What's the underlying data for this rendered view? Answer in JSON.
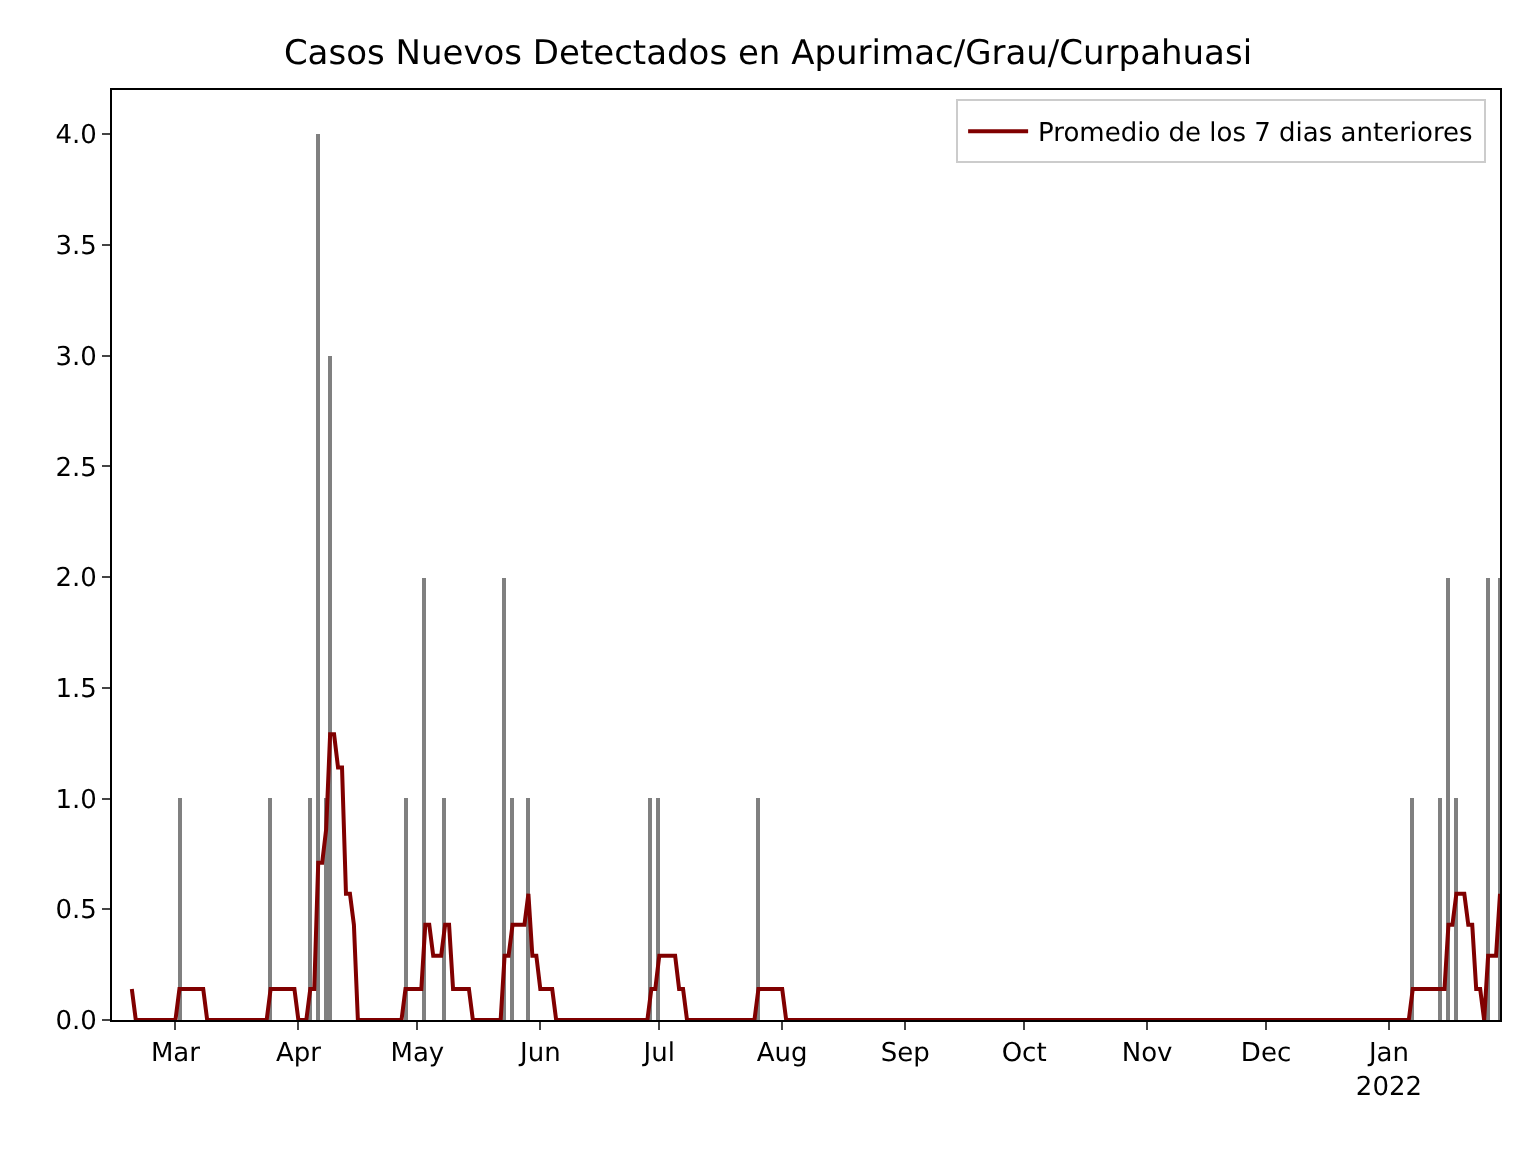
{
  "chart_data": {
    "type": "bar",
    "title": "Casos Nuevos Detectados en Apurimac/Grau/Curpahuasi",
    "series": [
      {
        "color": "#808080",
        "x": [
          "2021-03-02",
          "2021-03-25",
          "2021-04-04",
          "2021-04-06",
          "2021-04-08",
          "2021-04-09",
          "2021-04-28",
          "2021-05-03",
          "2021-05-08",
          "2021-05-23",
          "2021-05-25",
          "2021-05-29",
          "2021-06-29",
          "2021-07-01",
          "2021-07-26",
          "2022-01-07",
          "2022-01-14",
          "2022-01-16",
          "2022-01-18",
          "2022-01-26",
          "2022-01-29"
        ],
        "values": [
          1,
          1,
          1,
          4,
          1,
          3,
          1,
          2,
          1,
          2,
          1,
          1,
          1,
          1,
          1,
          1,
          1,
          2,
          1,
          2,
          2
        ]
      },
      {
        "type": "line",
        "name": "Promedio de los 7 dias anteriores",
        "color": "#800000",
        "x": [
          "2021-02-18",
          "2021-02-19",
          "2021-03-01",
          "2021-03-02",
          "2021-03-08",
          "2021-03-09",
          "2021-03-24",
          "2021-03-25",
          "2021-03-31",
          "2021-04-01",
          "2021-04-03",
          "2021-04-04",
          "2021-04-05",
          "2021-04-06",
          "2021-04-07",
          "2021-04-08",
          "2021-04-09",
          "2021-04-10",
          "2021-04-11",
          "2021-04-12",
          "2021-04-13",
          "2021-04-14",
          "2021-04-15",
          "2021-04-16",
          "2021-04-27",
          "2021-04-28",
          "2021-05-02",
          "2021-05-03",
          "2021-05-04",
          "2021-05-05",
          "2021-05-07",
          "2021-05-08",
          "2021-05-09",
          "2021-05-10",
          "2021-05-14",
          "2021-05-15",
          "2021-05-22",
          "2021-05-23",
          "2021-05-24",
          "2021-05-25",
          "2021-05-28",
          "2021-05-29",
          "2021-05-30",
          "2021-05-31",
          "2021-06-01",
          "2021-06-04",
          "2021-06-05",
          "2021-06-28",
          "2021-06-29",
          "2021-06-30",
          "2021-07-01",
          "2021-07-05",
          "2021-07-06",
          "2021-07-07",
          "2021-07-08",
          "2021-07-25",
          "2021-07-26",
          "2021-08-01",
          "2021-08-02",
          "2022-01-06",
          "2022-01-07",
          "2022-01-15",
          "2022-01-16",
          "2022-01-17",
          "2022-01-18",
          "2022-01-20",
          "2022-01-21",
          "2022-01-22",
          "2022-01-23",
          "2022-01-24",
          "2022-01-25",
          "2022-01-26",
          "2022-01-28",
          "2022-01-29"
        ],
        "values": [
          0.14,
          0,
          0,
          0.14,
          0.14,
          0,
          0,
          0.14,
          0.14,
          0,
          0,
          0.14,
          0.14,
          0.71,
          0.71,
          0.86,
          1.29,
          1.29,
          1.14,
          1.14,
          0.57,
          0.57,
          0.43,
          0,
          0,
          0.14,
          0.14,
          0.43,
          0.43,
          0.29,
          0.29,
          0.43,
          0.43,
          0.14,
          0.14,
          0,
          0,
          0.29,
          0.29,
          0.43,
          0.43,
          0.57,
          0.29,
          0.29,
          0.14,
          0.14,
          0,
          0,
          0.14,
          0.14,
          0.29,
          0.29,
          0.14,
          0.14,
          0,
          0,
          0.14,
          0.14,
          0,
          0,
          0.14,
          0.14,
          0.43,
          0.43,
          0.57,
          0.57,
          0.43,
          0.43,
          0.14,
          0.14,
          0,
          0.29,
          0.29,
          0.57
        ]
      }
    ],
    "xlim": [
      "2021-02-13",
      "2022-01-29"
    ],
    "xticks": [
      {
        "value": "2021-03-01",
        "label": "Mar"
      },
      {
        "value": "2021-04-01",
        "label": "Apr"
      },
      {
        "value": "2021-05-01",
        "label": "May"
      },
      {
        "value": "2021-06-01",
        "label": "Jun"
      },
      {
        "value": "2021-07-01",
        "label": "Jul"
      },
      {
        "value": "2021-08-01",
        "label": "Aug"
      },
      {
        "value": "2021-09-01",
        "label": "Sep"
      },
      {
        "value": "2021-10-01",
        "label": "Oct"
      },
      {
        "value": "2021-11-01",
        "label": "Nov"
      },
      {
        "value": "2021-12-01",
        "label": "Dec"
      },
      {
        "value": "2022-01-01",
        "label": "Jan\n2022"
      }
    ],
    "ylim": [
      0,
      4.2
    ],
    "yticks": [
      {
        "value": 0,
        "label": "0.0"
      },
      0.5,
      {
        "value": 1,
        "label": "1.0"
      },
      1.5,
      {
        "value": 2,
        "label": "2.0"
      },
      2.5,
      {
        "value": 3,
        "label": "3.0"
      },
      3.5,
      {
        "value": 4,
        "label": "4.0"
      }
    ],
    "legend": "top right"
  }
}
